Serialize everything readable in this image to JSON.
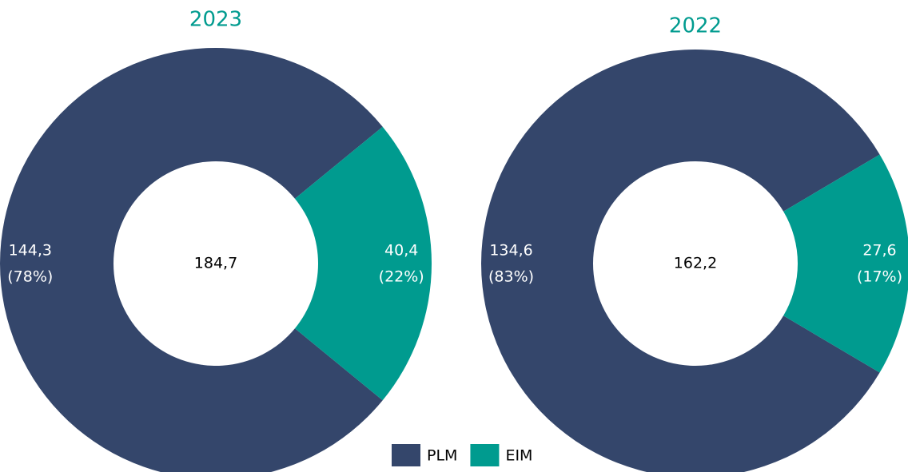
{
  "chart_data": [
    {
      "type": "donut",
      "title": "2023",
      "categories": [
        "PLM",
        "EIM"
      ],
      "values": [
        144.3,
        40.4
      ],
      "value_labels": [
        "144,3",
        "40,4"
      ],
      "percentages": [
        78,
        22
      ],
      "percentage_labels": [
        "(78%)",
        "(22%)"
      ],
      "colors": [
        "#34466b",
        "#009b8f"
      ],
      "total": 184.7,
      "total_label": "184,7"
    },
    {
      "type": "donut",
      "title": "2022",
      "categories": [
        "PLM",
        "EIM"
      ],
      "values": [
        134.6,
        27.6
      ],
      "value_labels": [
        "134,6",
        "27,6"
      ],
      "percentages": [
        83,
        17
      ],
      "percentage_labels": [
        "(83%)",
        "(17%)"
      ],
      "colors": [
        "#34466b",
        "#009b8f"
      ],
      "total": 162.2,
      "total_label": "162,2"
    }
  ]
}
